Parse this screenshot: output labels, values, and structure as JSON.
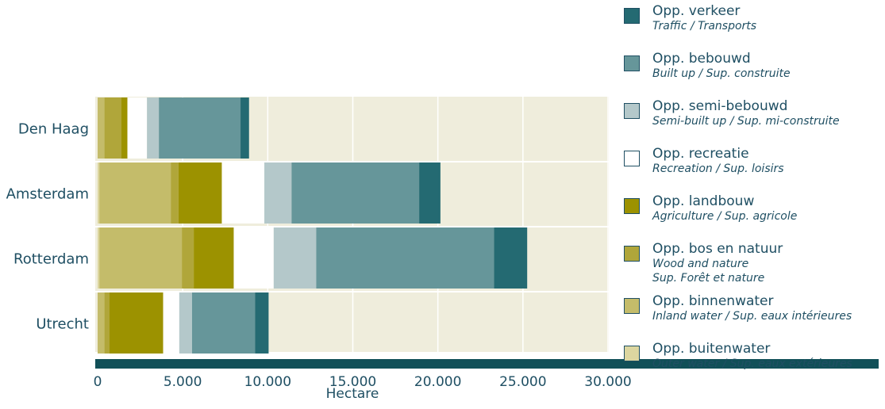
{
  "chart_data": {
    "type": "bar",
    "orientation": "horizontal",
    "stacked": true,
    "categories": [
      "Den Haag",
      "Amsterdam",
      "Rotterdam",
      "Utrecht"
    ],
    "xlabel": "Hectare",
    "xlim": [
      0,
      30000
    ],
    "xticks": [
      "0",
      "5.000",
      "10.000",
      "15.000",
      "20.000",
      "25.000",
      "30.000"
    ],
    "grid": true,
    "legend_position": "right",
    "series": [
      {
        "name": "Opp. buitenwater",
        "translation": "Outer water / Sup. eaux extérieures",
        "color": "#dcd6a0",
        "values": [
          0,
          100,
          100,
          0
        ]
      },
      {
        "name": "Opp. binnenwater",
        "translation": "Inland water / Sup. eaux intérieures",
        "color": "#c4bc6a",
        "values": [
          400,
          4200,
          4850,
          400
        ]
      },
      {
        "name": "Opp. bos en natuur",
        "translation": "Wood and nature\nSup. Forêt et nature",
        "color": "#b0a63a",
        "values": [
          1000,
          450,
          700,
          300
        ]
      },
      {
        "name": "Opp. landbouw",
        "translation": "Agriculture / Sup. agricole",
        "color": "#9c9200",
        "values": [
          350,
          2550,
          2350,
          3150
        ]
      },
      {
        "name": "Opp. recreatie",
        "translation": "Recreation / Sup. loisirs",
        "color": "#ffffff",
        "values": [
          1150,
          2500,
          2350,
          950
        ]
      },
      {
        "name": "Opp. semi-bebouwd",
        "translation": "Semi-built up / Sup. mi-construite",
        "color": "#b4c8ca",
        "values": [
          700,
          1600,
          2500,
          750
        ]
      },
      {
        "name": "Opp. bebouwd",
        "translation": "Built up / Sup. construite",
        "color": "#66969a",
        "values": [
          4800,
          7500,
          10450,
          3700
        ]
      },
      {
        "name": "Opp. verkeer",
        "translation": "Traffic / Transports",
        "color": "#246a72",
        "values": [
          500,
          1250,
          1950,
          800
        ]
      }
    ],
    "colors": {
      "plot_background": "#efeddc",
      "axis_bar": "#115058",
      "text": "#1f4f63"
    }
  }
}
